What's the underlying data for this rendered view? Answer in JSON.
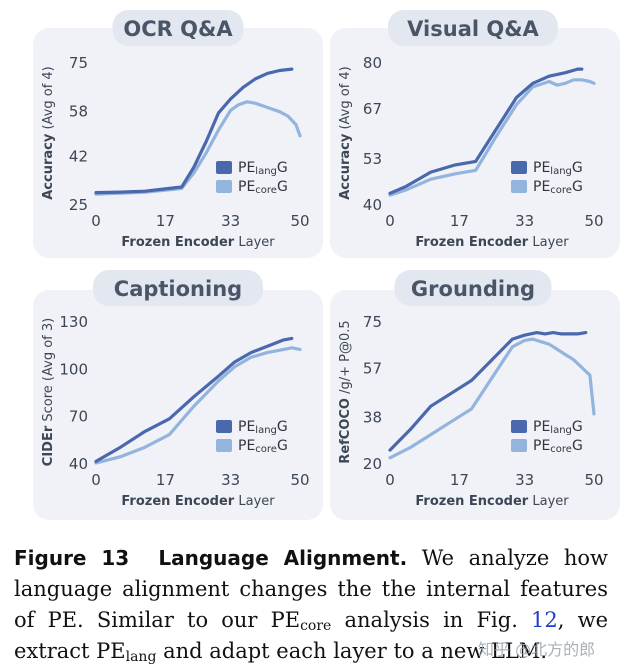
{
  "colors": {
    "lang": "#4a68ad",
    "core": "#93b4dc",
    "panel_bg": "#f0f2f8",
    "title_bg": "#e3e7f0",
    "title_text": "#4a5568",
    "axis_text": "#3d4654"
  },
  "chart_data": [
    {
      "type": "line",
      "title": "OCR Q&A",
      "xlabel_bold": "Frozen Encoder",
      "xlabel_rest": " Layer",
      "ylabel_bold": "Accuracy",
      "ylabel_rest": " (Avg of 4)",
      "xlim": [
        0,
        50
      ],
      "ylim": [
        25,
        75
      ],
      "xticks": [
        0,
        17,
        33,
        50
      ],
      "yticks": [
        25,
        42,
        58,
        75
      ],
      "legend": [
        {
          "base": "PE",
          "sub": "lang",
          "suffix": "G"
        },
        {
          "base": "PE",
          "sub": "core",
          "suffix": "G"
        }
      ],
      "series": [
        {
          "name": "PE_lang G",
          "x": [
            0,
            6,
            12,
            18,
            21,
            24,
            27,
            30,
            33,
            36,
            39,
            42,
            45,
            48
          ],
          "y": [
            29,
            29.2,
            29.5,
            30.5,
            31,
            38,
            47,
            57,
            62,
            66,
            69,
            71,
            72,
            72.5
          ]
        },
        {
          "name": "PE_core G",
          "x": [
            0,
            6,
            12,
            18,
            21,
            24,
            27,
            30,
            33,
            35,
            37,
            39,
            41,
            43,
            45,
            47,
            49,
            50
          ],
          "y": [
            28.5,
            28.8,
            29.2,
            30,
            30.5,
            36,
            43,
            51,
            58,
            60,
            61,
            60.5,
            59.5,
            58.5,
            57.5,
            56,
            53,
            49
          ]
        }
      ]
    },
    {
      "type": "line",
      "title": "Visual Q&A",
      "xlabel_bold": "Frozen Encoder",
      "xlabel_rest": " Layer",
      "ylabel_bold": "Accuracy",
      "ylabel_rest": " (Avg of 4)",
      "xlim": [
        0,
        50
      ],
      "ylim": [
        40,
        80
      ],
      "xticks": [
        0,
        17,
        33,
        50
      ],
      "yticks": [
        40,
        53,
        67,
        80
      ],
      "legend": [
        {
          "base": "PE",
          "sub": "lang",
          "suffix": "G"
        },
        {
          "base": "PE",
          "sub": "core",
          "suffix": "G"
        }
      ],
      "series": [
        {
          "name": "PE_lang G",
          "x": [
            0,
            4,
            10,
            16,
            21,
            26,
            31,
            35,
            39,
            43,
            46,
            47
          ],
          "y": [
            43,
            45,
            49,
            51,
            52,
            61,
            70,
            74,
            76,
            77,
            78,
            78
          ]
        },
        {
          "name": "PE_core G",
          "x": [
            0,
            4,
            10,
            16,
            21,
            26,
            31,
            35,
            39,
            41,
            43,
            45,
            47,
            49,
            50
          ],
          "y": [
            42.5,
            44,
            47,
            48.5,
            49.5,
            59,
            68,
            73,
            74.5,
            73.5,
            74,
            75,
            75,
            74.5,
            74
          ]
        }
      ]
    },
    {
      "type": "line",
      "title": "Captioning",
      "xlabel_bold": "Frozen Encoder",
      "xlabel_rest": " Layer",
      "ylabel_bold": "CIDEr",
      "ylabel_rest": " Score (Avg of 3)",
      "xlim": [
        0,
        50
      ],
      "ylim": [
        40,
        130
      ],
      "xticks": [
        0,
        17,
        33,
        50
      ],
      "yticks": [
        40,
        70,
        100,
        130
      ],
      "legend": [
        {
          "base": "PE",
          "sub": "lang",
          "suffix": "G"
        },
        {
          "base": "PE",
          "sub": "core",
          "suffix": "G"
        }
      ],
      "series": [
        {
          "name": "PE_lang G",
          "x": [
            0,
            6,
            12,
            18,
            24,
            30,
            34,
            38,
            42,
            46,
            48
          ],
          "y": [
            41,
            50,
            60,
            68,
            82,
            95,
            104,
            110,
            114,
            118,
            119
          ]
        },
        {
          "name": "PE_core G",
          "x": [
            0,
            6,
            12,
            18,
            24,
            30,
            34,
            38,
            42,
            46,
            48,
            50
          ],
          "y": [
            40,
            44,
            50,
            58,
            76,
            92,
            101,
            107,
            110,
            112,
            113,
            112
          ]
        }
      ]
    },
    {
      "type": "line",
      "title": "Grounding",
      "xlabel_bold": "Frozen Encoder",
      "xlabel_rest": " Layer",
      "ylabel_bold": "RefCOCO",
      "ylabel_rest": " /g/+ P@0.5",
      "xlim": [
        0,
        50
      ],
      "ylim": [
        20,
        75
      ],
      "xticks": [
        0,
        17,
        33,
        50
      ],
      "yticks": [
        20,
        38,
        57,
        75
      ],
      "legend": [
        {
          "base": "PE",
          "sub": "lang",
          "suffix": "G"
        },
        {
          "base": "PE",
          "sub": "core",
          "suffix": "G"
        }
      ],
      "series": [
        {
          "name": "PE_lang G",
          "x": [
            0,
            5,
            10,
            15,
            20,
            25,
            30,
            33,
            36,
            38,
            40,
            42,
            44,
            46,
            48
          ],
          "y": [
            25,
            33,
            42,
            47,
            52,
            60,
            68,
            69.5,
            70.5,
            70,
            70.5,
            70,
            70,
            70,
            70.5
          ]
        },
        {
          "name": "PE_core G",
          "x": [
            0,
            5,
            10,
            15,
            20,
            25,
            30,
            33,
            35,
            37,
            39,
            41,
            43,
            45,
            47,
            49,
            50
          ],
          "y": [
            22,
            26,
            31,
            36,
            41,
            53,
            65,
            67.5,
            68,
            67,
            66,
            64,
            62,
            60,
            57,
            54,
            39
          ]
        }
      ]
    }
  ],
  "caption": {
    "label": "Figure 13",
    "bold_title": "Language Alignment.",
    "p1": " We analyze how language alignment changes the the internal features of PE. Similar to our PE",
    "sub1": "core",
    "p2": " analysis in Fig. ",
    "fig_ref": "12",
    "p3": ", we extract PE",
    "sub2": "lang",
    "p4": " and adapt each layer to a new LLM."
  },
  "watermark": "知乎 @北方的郎"
}
